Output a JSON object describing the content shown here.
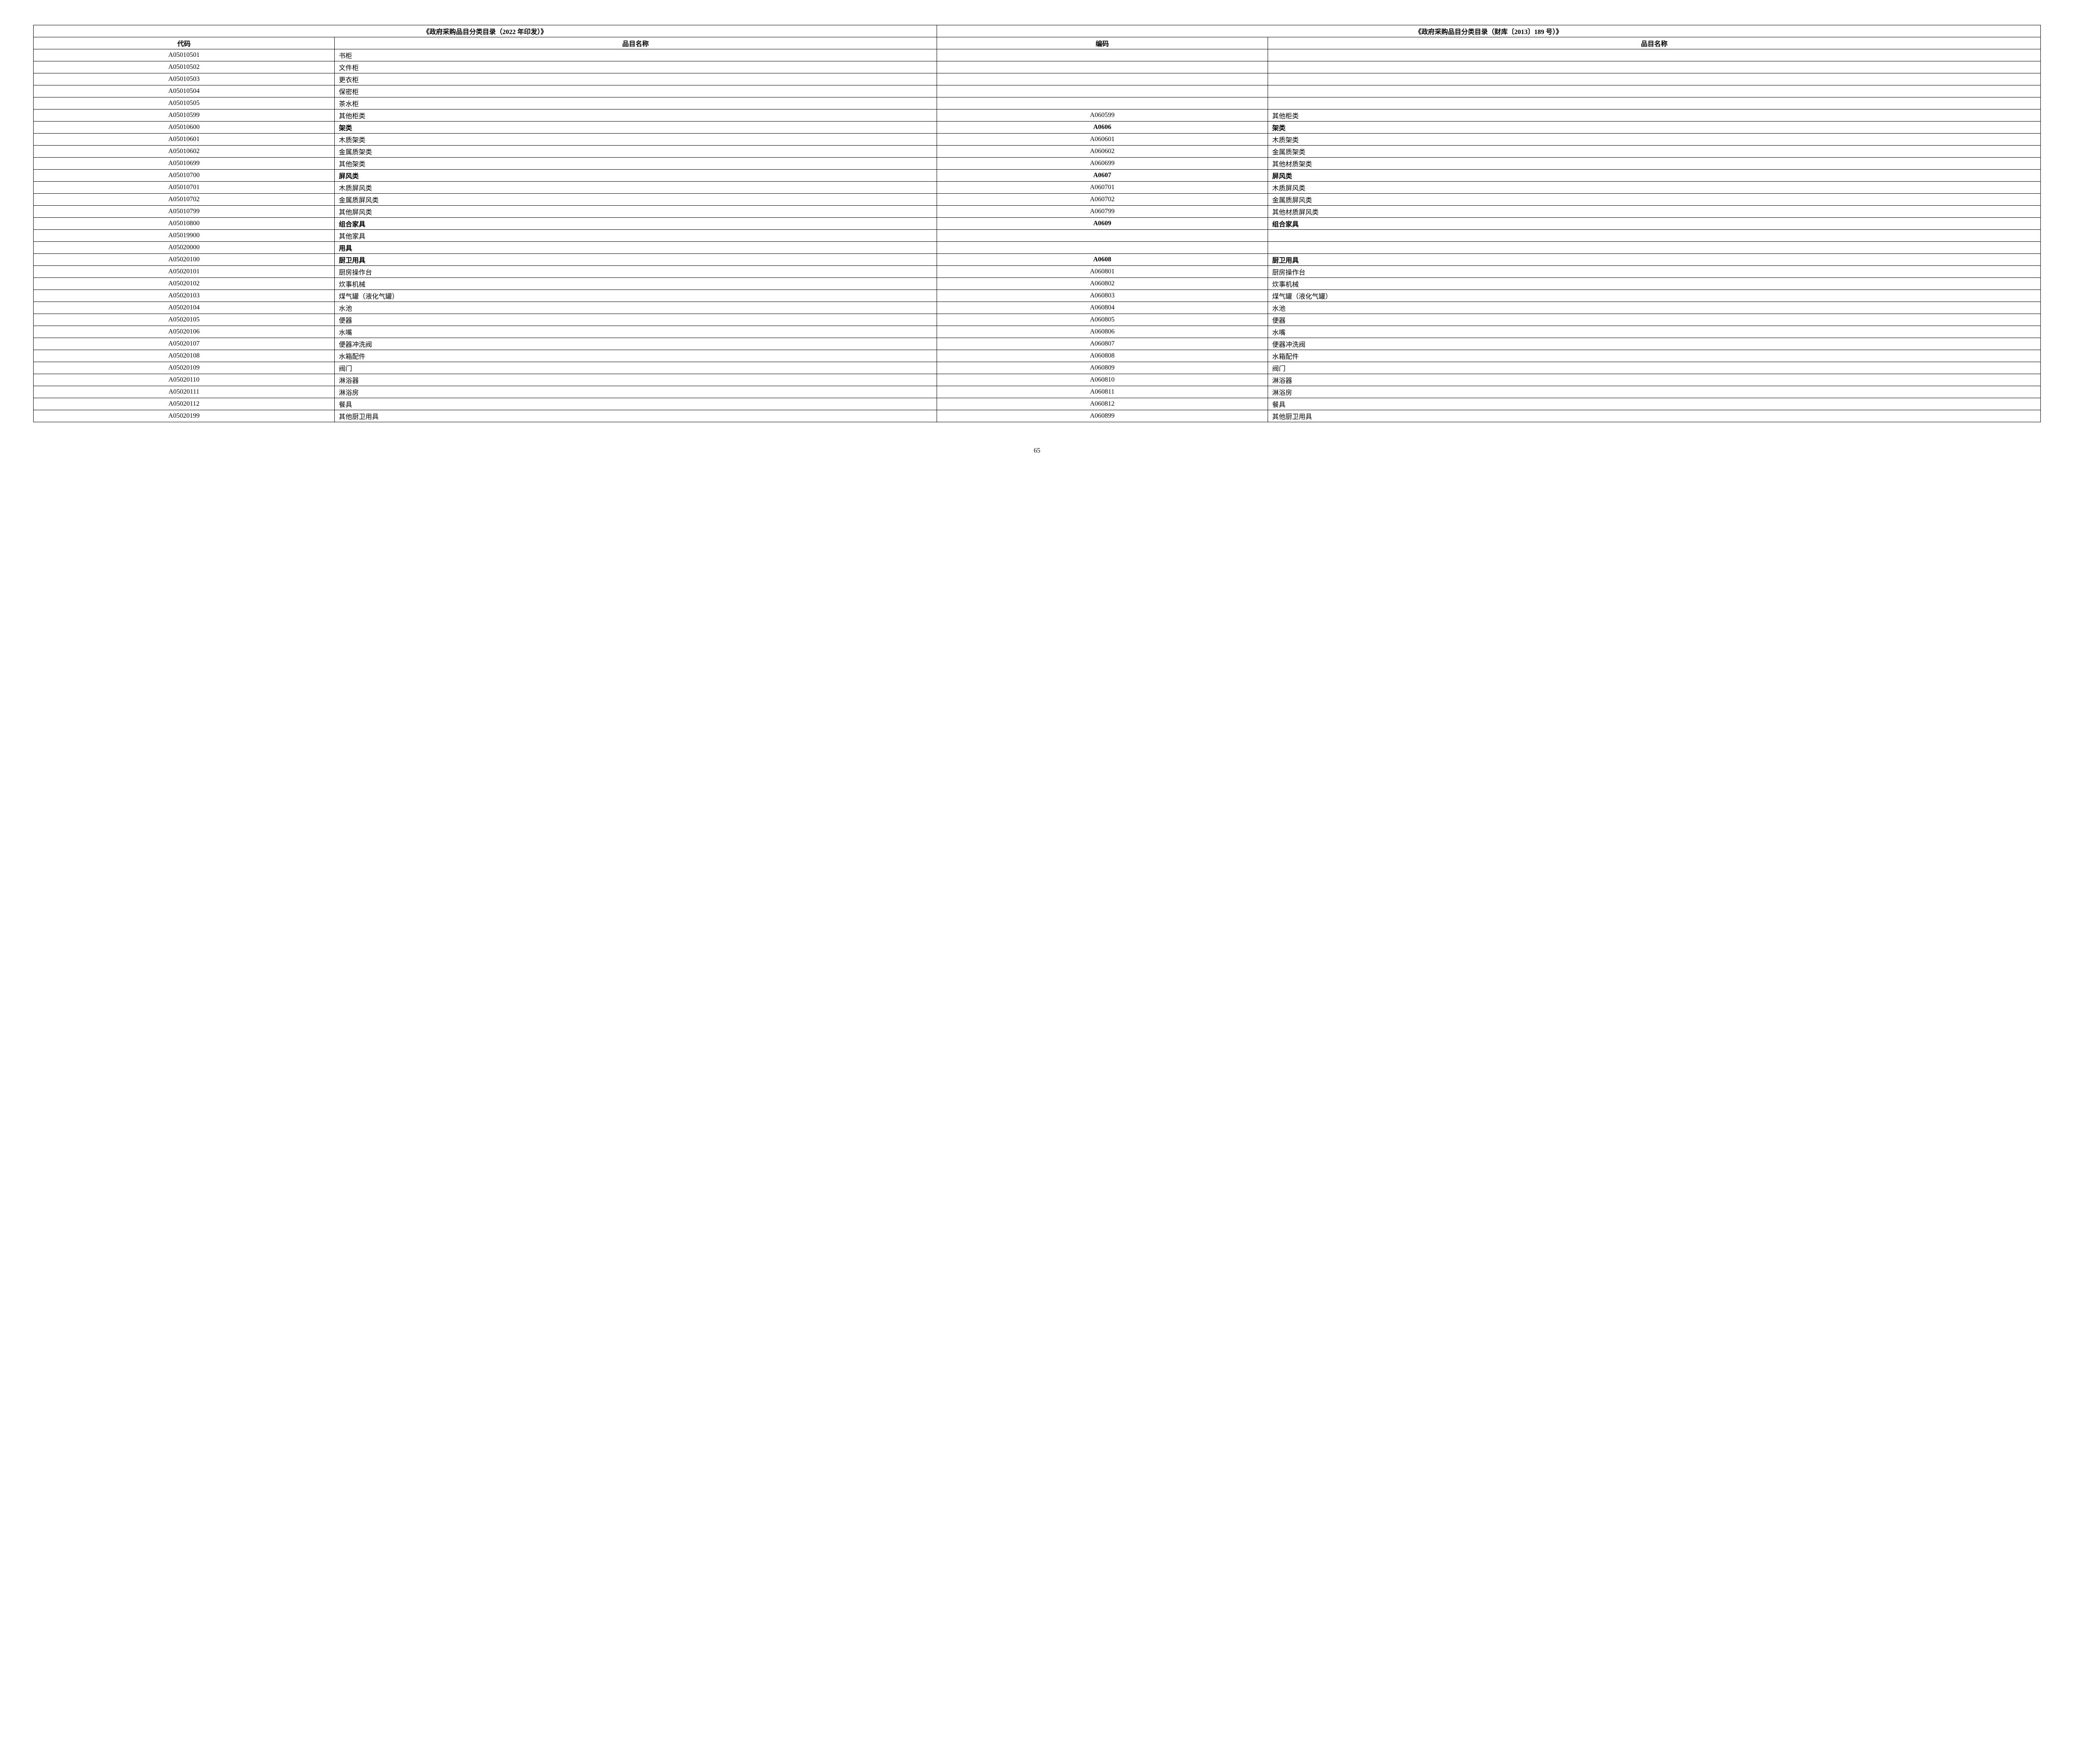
{
  "table": {
    "left_main_header": "《政府采购品目分类目录（2022 年印发）》",
    "right_main_header": "《政府采购品目分类目录（财库〔2013〕189 号）》",
    "left_sub_headers": {
      "code": "代码",
      "name": "品目名称"
    },
    "right_sub_headers": {
      "code": "编码",
      "name": "品目名称"
    },
    "col_widths": [
      "15%",
      "30%",
      "16.5%",
      "38.5%"
    ],
    "rows": [
      {
        "lcode": "A05010501",
        "lname": "书柜",
        "rcode": "",
        "rname": "",
        "bold": false
      },
      {
        "lcode": "A05010502",
        "lname": "文件柜",
        "rcode": "",
        "rname": "",
        "bold": false
      },
      {
        "lcode": "A05010503",
        "lname": "更衣柜",
        "rcode": "",
        "rname": "",
        "bold": false
      },
      {
        "lcode": "A05010504",
        "lname": "保密柜",
        "rcode": "",
        "rname": "",
        "bold": false
      },
      {
        "lcode": "A05010505",
        "lname": "茶水柜",
        "rcode": "",
        "rname": "",
        "bold": false
      },
      {
        "lcode": "A05010599",
        "lname": "其他柜类",
        "rcode": "A060599",
        "rname": "其他柜类",
        "bold": false
      },
      {
        "lcode": "A05010600",
        "lname": "架类",
        "rcode": "A0606",
        "rname": "架类",
        "bold": true
      },
      {
        "lcode": "A05010601",
        "lname": "木质架类",
        "rcode": "A060601",
        "rname": "木质架类",
        "bold": false
      },
      {
        "lcode": "A05010602",
        "lname": "金属质架类",
        "rcode": "A060602",
        "rname": "金属质架类",
        "bold": false
      },
      {
        "lcode": "A05010699",
        "lname": "其他架类",
        "rcode": "A060699",
        "rname": "其他材质架类",
        "bold": false
      },
      {
        "lcode": "A05010700",
        "lname": "屏风类",
        "rcode": "A0607",
        "rname": "屏风类",
        "bold": true
      },
      {
        "lcode": "A05010701",
        "lname": "木质屏风类",
        "rcode": "A060701",
        "rname": "木质屏风类",
        "bold": false
      },
      {
        "lcode": "A05010702",
        "lname": "金属质屏风类",
        "rcode": "A060702",
        "rname": "金属质屏风类",
        "bold": false
      },
      {
        "lcode": "A05010799",
        "lname": "其他屏风类",
        "rcode": "A060799",
        "rname": "其他材质屏风类",
        "bold": false
      },
      {
        "lcode": "A05010800",
        "lname": "组合家具",
        "rcode": "A0609",
        "rname": "组合家具",
        "bold": true
      },
      {
        "lcode": "A05019900",
        "lname": "其他家具",
        "rcode": "",
        "rname": "",
        "bold": false
      },
      {
        "lcode": "A05020000",
        "lname": "用具",
        "rcode": "",
        "rname": "",
        "bold": true,
        "lname_bold_only": true
      },
      {
        "lcode": "A05020100",
        "lname": "厨卫用具",
        "rcode": "A0608",
        "rname": "厨卫用具",
        "bold": true
      },
      {
        "lcode": "A05020101",
        "lname": "厨房操作台",
        "rcode": "A060801",
        "rname": "厨房操作台",
        "bold": false
      },
      {
        "lcode": "A05020102",
        "lname": "炊事机械",
        "rcode": "A060802",
        "rname": "炊事机械",
        "bold": false
      },
      {
        "lcode": "A05020103",
        "lname": "煤气罐（液化气罐）",
        "rcode": "A060803",
        "rname": "煤气罐（液化气罐）",
        "bold": false
      },
      {
        "lcode": "A05020104",
        "lname": "水池",
        "rcode": "A060804",
        "rname": "水池",
        "bold": false
      },
      {
        "lcode": "A05020105",
        "lname": "便器",
        "rcode": "A060805",
        "rname": "便器",
        "bold": false
      },
      {
        "lcode": "A05020106",
        "lname": "水嘴",
        "rcode": "A060806",
        "rname": "水嘴",
        "bold": false
      },
      {
        "lcode": "A05020107",
        "lname": "便器冲洗阀",
        "rcode": "A060807",
        "rname": "便器冲洗阀",
        "bold": false
      },
      {
        "lcode": "A05020108",
        "lname": "水箱配件",
        "rcode": "A060808",
        "rname": "水箱配件",
        "bold": false
      },
      {
        "lcode": "A05020109",
        "lname": "阀门",
        "rcode": "A060809",
        "rname": "阀门",
        "bold": false
      },
      {
        "lcode": "A05020110",
        "lname": "淋浴器",
        "rcode": "A060810",
        "rname": "淋浴器",
        "bold": false
      },
      {
        "lcode": "A05020111",
        "lname": "淋浴房",
        "rcode": "A060811",
        "rname": "淋浴房",
        "bold": false
      },
      {
        "lcode": "A05020112",
        "lname": "餐具",
        "rcode": "A060812",
        "rname": "餐具",
        "bold": false
      },
      {
        "lcode": "A05020199",
        "lname": "其他厨卫用具",
        "rcode": "A060899",
        "rname": "其他厨卫用具",
        "bold": false
      }
    ]
  },
  "page_number": "65"
}
